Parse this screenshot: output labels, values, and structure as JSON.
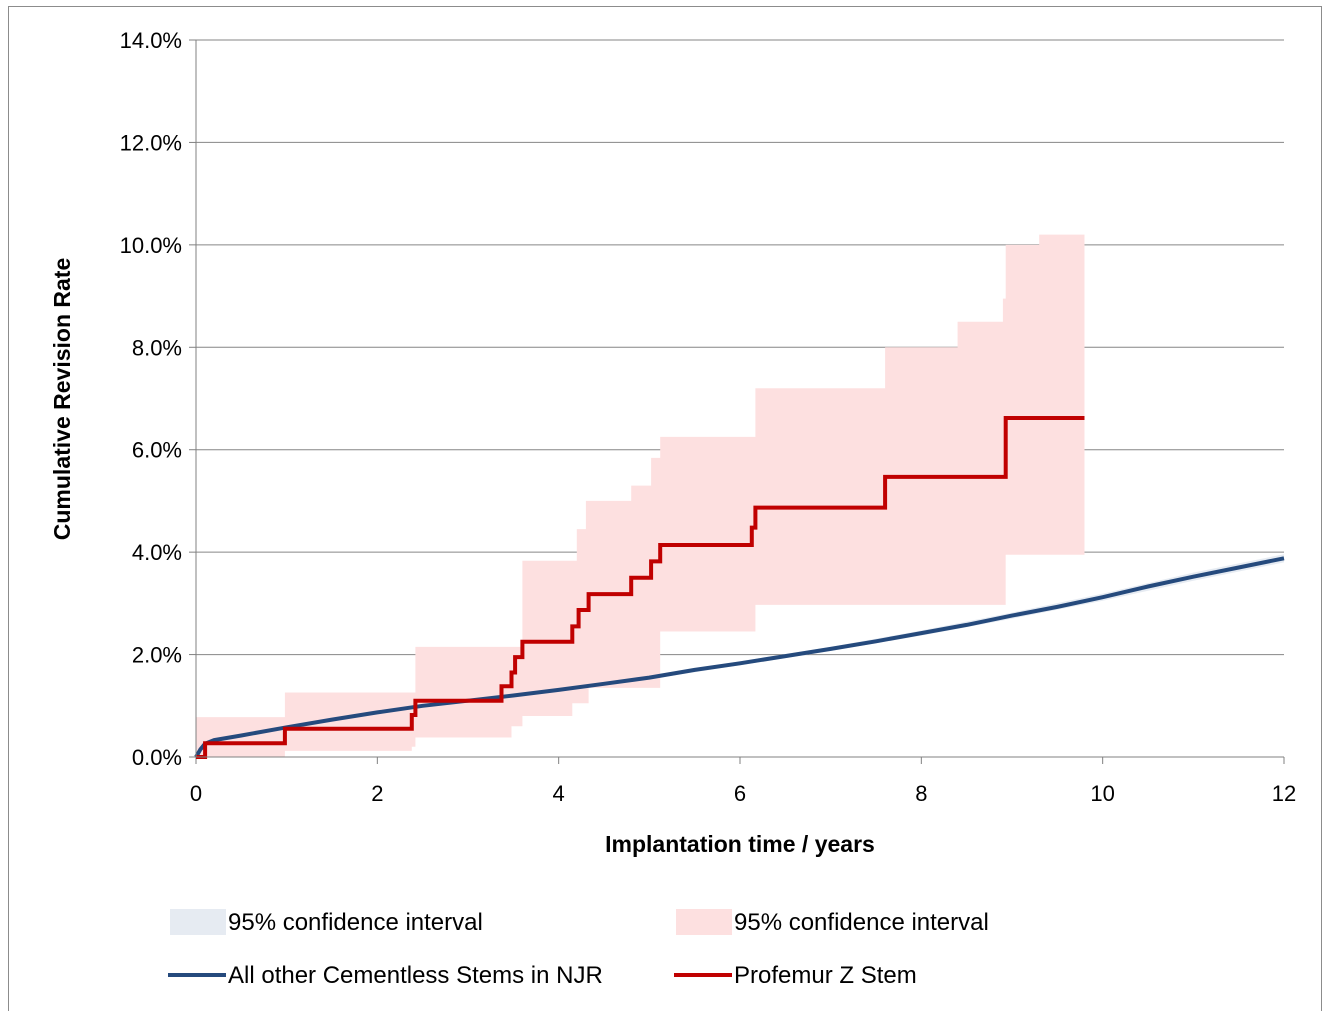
{
  "chart_data": {
    "type": "line",
    "title": "",
    "xlabel": "Implantation time  / years",
    "ylabel": "Cumulative Revision Rate",
    "xlim": [
      0,
      12
    ],
    "ylim": [
      0,
      14
    ],
    "x_ticks": [
      "0",
      "2",
      "4",
      "6",
      "8",
      "10",
      "12"
    ],
    "y_ticks": [
      "0.0%",
      "2.0%",
      "4.0%",
      "6.0%",
      "8.0%",
      "10.0%",
      "12.0%",
      "14.0%"
    ],
    "grid": "horizontal",
    "legend_position": "bottom",
    "series": [
      {
        "name": "All other Cementless Stems in NJR",
        "color": "#254a7d",
        "ci_label": "95% confidence interval",
        "ci_color": "#e6ebf2",
        "points": [
          [
            0,
            0
          ],
          [
            0.05,
            0.15
          ],
          [
            0.1,
            0.26
          ],
          [
            0.2,
            0.33
          ],
          [
            0.5,
            0.42
          ],
          [
            1,
            0.58
          ],
          [
            1.5,
            0.73
          ],
          [
            2,
            0.87
          ],
          [
            2.5,
            1.0
          ],
          [
            3,
            1.1
          ],
          [
            3.5,
            1.2
          ],
          [
            4,
            1.31
          ],
          [
            4.5,
            1.43
          ],
          [
            5,
            1.55
          ],
          [
            5.5,
            1.7
          ],
          [
            6,
            1.83
          ],
          [
            6.5,
            1.97
          ],
          [
            7,
            2.11
          ],
          [
            7.5,
            2.26
          ],
          [
            8,
            2.42
          ],
          [
            8.5,
            2.58
          ],
          [
            9,
            2.76
          ],
          [
            9.5,
            2.93
          ],
          [
            10,
            3.12
          ],
          [
            10.5,
            3.33
          ],
          [
            11,
            3.52
          ],
          [
            11.5,
            3.7
          ],
          [
            12,
            3.88
          ]
        ],
        "ci_lower": [
          [
            0,
            0
          ],
          [
            0.1,
            0.24
          ],
          [
            1,
            0.56
          ],
          [
            2,
            0.85
          ],
          [
            3,
            1.07
          ],
          [
            4,
            1.28
          ],
          [
            5,
            1.52
          ],
          [
            6,
            1.79
          ],
          [
            7,
            2.07
          ],
          [
            8,
            2.37
          ],
          [
            9,
            2.7
          ],
          [
            10,
            3.05
          ],
          [
            11,
            3.44
          ],
          [
            12,
            3.8
          ]
        ],
        "ci_upper": [
          [
            0,
            0
          ],
          [
            0.1,
            0.28
          ],
          [
            1,
            0.6
          ],
          [
            2,
            0.89
          ],
          [
            3,
            1.13
          ],
          [
            4,
            1.34
          ],
          [
            5,
            1.58
          ],
          [
            6,
            1.87
          ],
          [
            7,
            2.15
          ],
          [
            8,
            2.47
          ],
          [
            9,
            2.82
          ],
          [
            10,
            3.19
          ],
          [
            11,
            3.6
          ],
          [
            12,
            3.96
          ]
        ]
      },
      {
        "name": "Profemur Z Stem",
        "color": "#c00000",
        "ci_label": "95% confidence interval",
        "ci_color": "#fde0e0",
        "steps": [
          [
            0,
            0
          ],
          [
            0.1,
            0.27
          ],
          [
            0.98,
            0.55
          ],
          [
            2.38,
            0.82
          ],
          [
            2.42,
            1.1
          ],
          [
            3.37,
            1.38
          ],
          [
            3.48,
            1.65
          ],
          [
            3.52,
            1.95
          ],
          [
            3.6,
            2.25
          ],
          [
            4.15,
            2.55
          ],
          [
            4.22,
            2.87
          ],
          [
            4.33,
            3.18
          ],
          [
            4.8,
            3.5
          ],
          [
            5.02,
            3.82
          ],
          [
            5.12,
            4.14
          ],
          [
            6.13,
            4.48
          ],
          [
            6.17,
            4.87
          ],
          [
            7.6,
            5.47
          ],
          [
            8.93,
            6.62
          ],
          [
            9.8,
            6.62
          ]
        ],
        "ci_lower_steps": [
          [
            0,
            0
          ],
          [
            0.98,
            0.12
          ],
          [
            2.38,
            0.2
          ],
          [
            2.42,
            0.38
          ],
          [
            3.48,
            0.6
          ],
          [
            3.6,
            0.8
          ],
          [
            4.15,
            1.05
          ],
          [
            4.33,
            1.35
          ],
          [
            5.12,
            2.45
          ],
          [
            6.17,
            2.97
          ],
          [
            8.93,
            3.95
          ],
          [
            9.8,
            3.95
          ]
        ],
        "ci_upper_steps": [
          [
            0,
            0.78
          ],
          [
            0.98,
            1.26
          ],
          [
            2.38,
            1.26
          ],
          [
            2.42,
            2.15
          ],
          [
            3.48,
            2.15
          ],
          [
            3.6,
            3.83
          ],
          [
            4.2,
            4.45
          ],
          [
            4.3,
            5.0
          ],
          [
            4.8,
            5.3
          ],
          [
            5.02,
            5.84
          ],
          [
            5.12,
            6.25
          ],
          [
            6.17,
            7.2
          ],
          [
            7.6,
            8.0
          ],
          [
            8.4,
            8.5
          ],
          [
            8.9,
            8.95
          ],
          [
            8.93,
            10.0
          ],
          [
            9.3,
            10.2
          ],
          [
            9.8,
            11.35
          ]
        ]
      }
    ]
  }
}
